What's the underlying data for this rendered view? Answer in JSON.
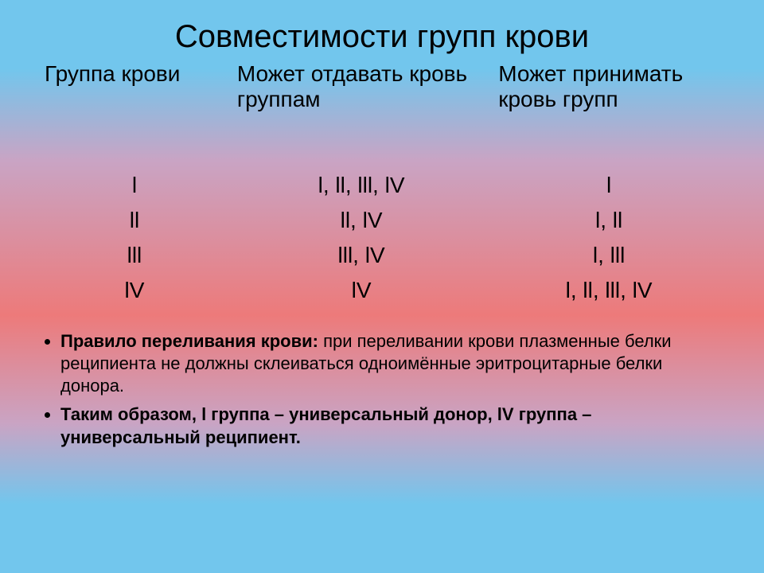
{
  "title": "Совместимости групп крови",
  "table": {
    "columns": [
      "Группа крови",
      "Может отдавать кровь группам",
      "Может принимать кровь групп"
    ],
    "col_widths": [
      "28%",
      "38%",
      "34%"
    ],
    "rows": [
      [
        "l",
        "l, ll, lll, lV",
        "l"
      ],
      [
        "ll",
        "ll, lV",
        "l, ll"
      ],
      [
        "lll",
        "lll, lV",
        "l, lll"
      ],
      [
        "lV",
        "lV",
        "l, ll, lll, lV"
      ]
    ]
  },
  "rules": [
    {
      "lead": "Правило переливания крови:",
      "rest": " при переливании крови плазменные белки реципиента не должны склеиваться одноимённые эритроцитарные белки донора."
    },
    {
      "lead": "Таким образом,",
      "rest": " l группа – универсальный донор, lV группа – универсальный реципиент.",
      "rest_bold": true
    }
  ],
  "style": {
    "bg_top": "#72c6ed",
    "bg_mid1": "#c9a4c4",
    "bg_mid2": "#ed7a7a",
    "text": "#000000",
    "title_fontsize": 40,
    "header_fontsize": 28,
    "cell_fontsize": 28,
    "rule_fontsize": 22
  }
}
